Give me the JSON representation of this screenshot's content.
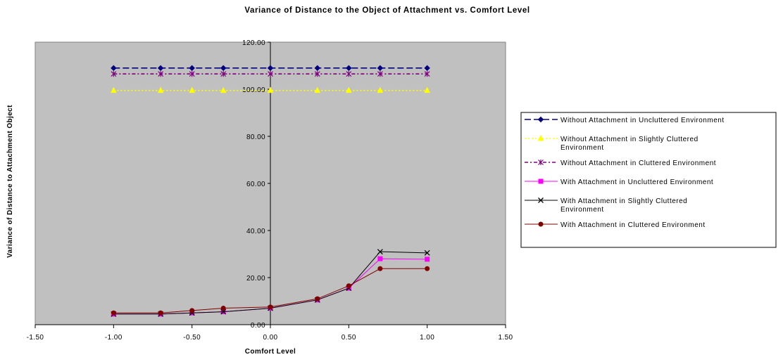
{
  "chart_data": {
    "type": "line",
    "title": "Variance of Distance to the Object of Attachment vs. Comfort Level",
    "xlabel": "Comfort Level",
    "ylabel": "Variance of Distance to Attachment Object",
    "xlim": [
      -1.5,
      1.5
    ],
    "ylim": [
      0,
      120
    ],
    "x_ticks": [
      "-1.50",
      "-1.00",
      "-0.50",
      "0.00",
      "0.50",
      "1.00",
      "1.50"
    ],
    "y_ticks": [
      "0.00",
      "20.00",
      "40.00",
      "60.00",
      "80.00",
      "100.00",
      "120.00"
    ],
    "grid": false,
    "plot_background": "#c0c0c0",
    "legend_position": "right",
    "x": [
      -1.0,
      -0.7,
      -0.5,
      -0.3,
      0.0,
      0.3,
      0.5,
      0.7,
      1.0
    ],
    "series": [
      {
        "name": "Without Attachment in Uncluttered Environment",
        "legend_lines": [
          "Without Attachment in Uncluttered Environment"
        ],
        "color": "#000080",
        "dash": "dashed",
        "marker": "diamond",
        "values": [
          109,
          109,
          109,
          109,
          109,
          109,
          109,
          109,
          109
        ]
      },
      {
        "name": "Without Attachment in Slightly Cluttered Environment",
        "legend_lines": [
          "Without Attachment in Slightly Cluttered",
          "Environment"
        ],
        "color": "#ffff00",
        "dash": "dotted",
        "marker": "triangle",
        "values": [
          99.5,
          99.5,
          99.5,
          99.5,
          99.5,
          99.5,
          99.5,
          99.5,
          99.5
        ]
      },
      {
        "name": "Without Attachment in Cluttered Environment",
        "legend_lines": [
          "Without Attachment in Cluttered Environment"
        ],
        "color": "#800080",
        "dash": "dashdot",
        "marker": "asterisk",
        "values": [
          106.5,
          106.5,
          106.5,
          106.5,
          106.5,
          106.5,
          106.5,
          106.5,
          106.5
        ]
      },
      {
        "name": "With Attachment in Uncluttered Environment",
        "legend_lines": [
          "With Attachment in Uncluttered Environment"
        ],
        "color": "#ff00ff",
        "dash": "solid",
        "marker": "square",
        "values": [
          4.5,
          4.5,
          5,
          5.5,
          7,
          10.5,
          15.5,
          28,
          27.8
        ]
      },
      {
        "name": "With Attachment in Slightly Cluttered Environment",
        "legend_lines": [
          "With Attachment in Slightly Cluttered",
          "Environment"
        ],
        "color": "#000000",
        "dash": "solid",
        "marker": "x",
        "values": [
          4.5,
          4.5,
          5,
          5.5,
          7,
          10.5,
          15.5,
          31,
          30.5
        ]
      },
      {
        "name": "With Attachment in Cluttered Environment",
        "legend_lines": [
          "With Attachment in Cluttered Environment"
        ],
        "color": "#800000",
        "dash": "solid",
        "marker": "circle",
        "values": [
          5,
          5,
          6,
          7,
          7.5,
          11,
          16.5,
          23.8,
          23.8
        ]
      }
    ]
  }
}
